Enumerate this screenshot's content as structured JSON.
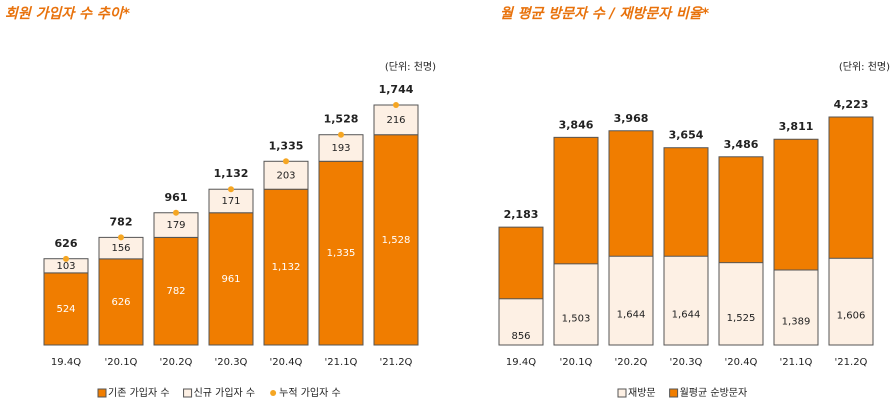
{
  "chart_data": [
    {
      "type": "stacked_bar",
      "title": "회원 가입자 수 추이*",
      "subtitle": "(단위: 천명)",
      "categories": [
        "19.4Q",
        "'20.1Q",
        "'20.2Q",
        "'20.3Q",
        "'20.4Q",
        "'21.1Q",
        "'21.2Q"
      ],
      "series": [
        {
          "name": "기존 가입자 수",
          "color": "#f07d00",
          "values": [
            524,
            626,
            782,
            961,
            1132,
            1335,
            1528
          ],
          "value_labels": [
            "524",
            "626",
            "782",
            "961",
            "1,132",
            "1,335",
            "1,528"
          ]
        },
        {
          "name": "신규 가입자 수",
          "color": "#fdf0e4",
          "values": [
            103,
            156,
            179,
            171,
            203,
            193,
            216
          ]
        },
        {
          "name": "누적 가입자 수",
          "color": "#f5a623",
          "type": "scatter",
          "values": [
            626,
            782,
            961,
            1132,
            1335,
            1528,
            1744
          ],
          "value_labels": [
            "626",
            "782",
            "961",
            "1,132",
            "1,335",
            "1,528",
            "1,744"
          ]
        }
      ]
    },
    {
      "type": "overlap_bar",
      "title": "월 평균 방문자 수 / 재방문자 비율*",
      "subtitle": "(단위: 천명)",
      "categories": [
        "19.4Q",
        "'20.1Q",
        "'20.2Q",
        "'20.3Q",
        "'20.4Q",
        "'21.1Q",
        "'21.2Q"
      ],
      "series": [
        {
          "name": "재방문",
          "color": "#fdf0e4",
          "values": [
            856,
            1503,
            1644,
            1644,
            1525,
            1389,
            1606
          ],
          "value_labels": [
            "856",
            "1,503",
            "1,644",
            "1,644",
            "1,525",
            "1,389",
            "1,606"
          ]
        },
        {
          "name": "월평균 순방문자",
          "color": "#f07d00",
          "values": [
            2183,
            3846,
            3968,
            3654,
            3486,
            3811,
            4223
          ],
          "value_labels": [
            "2,183",
            "3,846",
            "3,968",
            "3,654",
            "3,486",
            "3,811",
            "4,223"
          ]
        }
      ]
    }
  ]
}
